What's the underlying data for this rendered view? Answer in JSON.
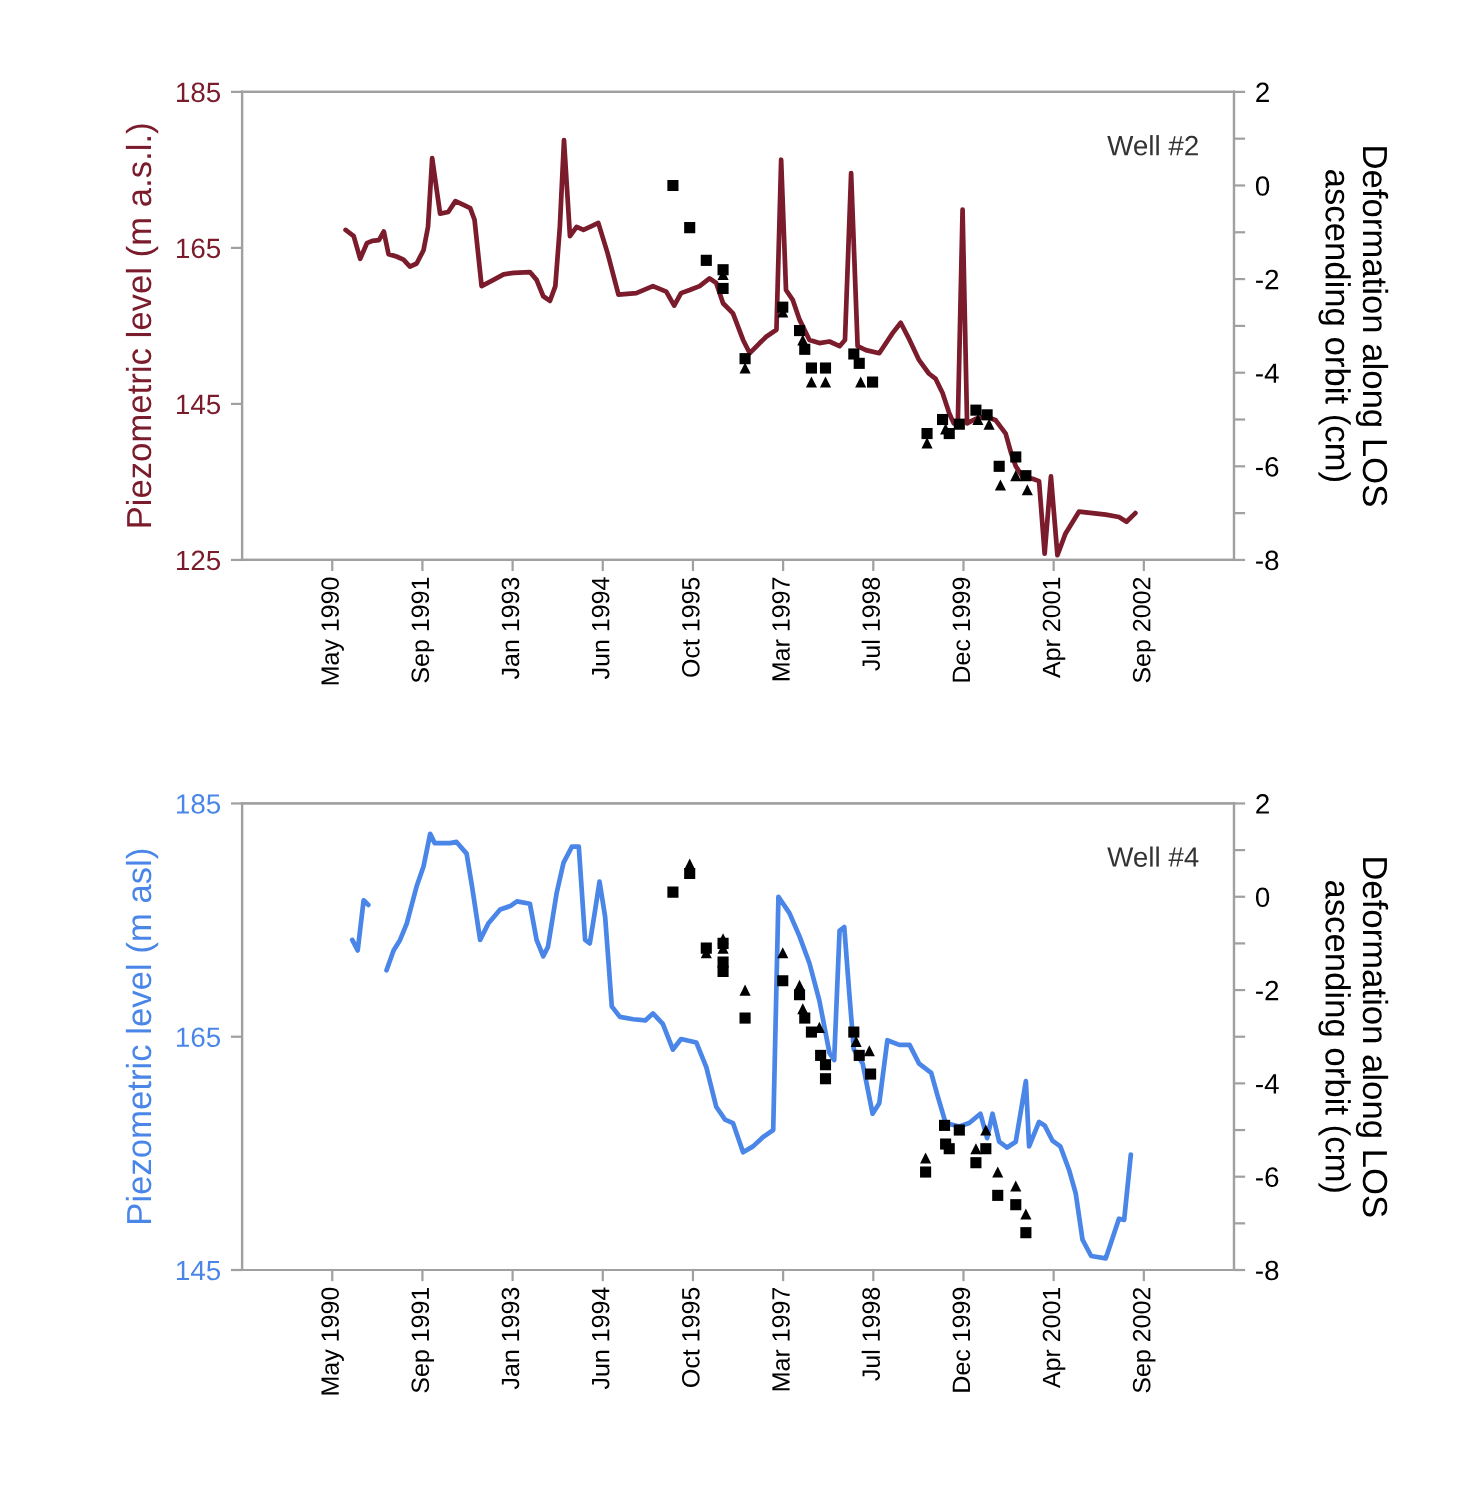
{
  "chart_data": [
    {
      "type": "line",
      "ylabel": "Piezometric level (m a.s.l.)",
      "y2label": "Deformation along LOS\nascending orbit (cm)",
      "annotations": [
        "Well #2"
      ],
      "xlim": [
        "1988-12-23",
        "2004-01-14"
      ],
      "xticks": [
        {
          "value": "1990-05-07",
          "label": "May 1990"
        },
        {
          "value": "1991-09-19",
          "label": "Sep 1991"
        },
        {
          "value": "1993-01-31",
          "label": "Jan 1993"
        },
        {
          "value": "1994-06-15",
          "label": "Jun 1994"
        },
        {
          "value": "1995-10-28",
          "label": "Oct 1995"
        },
        {
          "value": "1997-03-11",
          "label": "Mar 1997"
        },
        {
          "value": "1998-07-24",
          "label": "Jul 1998"
        },
        {
          "value": "1999-12-06",
          "label": "Dec 1999"
        },
        {
          "value": "2001-04-19",
          "label": "Apr 2001"
        },
        {
          "value": "2002-09-01",
          "label": "Sep 2002"
        }
      ],
      "ylim": [
        125,
        185
      ],
      "yticks": [
        125,
        145,
        165,
        185
      ],
      "y2lim": [
        -8,
        2
      ],
      "y2ticks": [
        -8,
        {
          "value": -7,
          "label": null
        },
        -6,
        {
          "value": -5,
          "label": null
        },
        -4,
        {
          "value": -3,
          "label": null
        },
        -2,
        {
          "value": -1,
          "label": null
        },
        0,
        {
          "value": 1,
          "label": null
        },
        2
      ],
      "series": [
        {
          "color": "#7b1c2c",
          "x": [
            "1990-07-20",
            "1990-09-03",
            "1990-10-09",
            "1990-11-15",
            "1990-12-15",
            "1991-01-21",
            "1991-02-17",
            "1991-03-15",
            "1991-04-28",
            "1991-06-06",
            "1991-07-12",
            "1991-08-18",
            "1991-09-25",
            "1991-10-20",
            "1991-11-12",
            "1991-12-26",
            "1992-02-09",
            "1992-03-20",
            "1992-05-04",
            "1992-06-10",
            "1992-07-04",
            "1992-08-12",
            "1992-10-17",
            "1992-12-12",
            "1993-02-06",
            "1993-05-07",
            "1993-06-13",
            "1993-07-20",
            "1993-08-26",
            "1993-09-25",
            "1993-10-20",
            "1993-11-12",
            "1993-12-15",
            "1994-01-21",
            "1994-02-28",
            "1994-04-23",
            "1994-05-21",
            "1994-07-12",
            "1994-09-10",
            "1994-12-18",
            "1995-03-20",
            "1995-06-02",
            "1995-07-16",
            "1995-08-23",
            "1995-10-10",
            "1995-12-04",
            "1996-01-28",
            "1996-03-05",
            "1996-04-12",
            "1996-06-06",
            "1996-08-01",
            "1996-09-07",
            "1996-11-01",
            "1996-12-07",
            "1997-02-02",
            "1997-02-28",
            "1997-03-27",
            "1997-05-04",
            "1997-06-10",
            "1997-08-04",
            "1997-09-28",
            "1997-11-23",
            "1998-01-18",
            "1998-02-17",
            "1998-03-23",
            "1998-04-28",
            "1998-06-13",
            "1998-08-26",
            "1998-11-09",
            "1998-12-23",
            "1999-02-10",
            "1999-04-04",
            "1999-05-28",
            "1999-07-05",
            "1999-08-12",
            "1999-09-18",
            "1999-10-13",
            "1999-11-05",
            "1999-12-01",
            "1999-12-26",
            "2000-02-13",
            "2000-04-08",
            "2000-06-02",
            "2000-07-27",
            "2000-08-26",
            "2000-09-21",
            "2000-10-28",
            "2000-12-23",
            "2001-01-28",
            "2001-02-28",
            "2001-04-04",
            "2001-05-10",
            "2001-06-24",
            "2001-09-07",
            "2001-11-20",
            "2002-02-02",
            "2002-04-16",
            "2002-05-28",
            "2002-07-16"
          ],
          "values": [
            167.3,
            166.5,
            163.6,
            165.6,
            165.9,
            166.0,
            167.1,
            164.2,
            163.9,
            163.5,
            162.6,
            163.0,
            164.7,
            167.7,
            176.5,
            169.4,
            169.6,
            171.0,
            170.5,
            170.1,
            168.6,
            160.1,
            160.9,
            161.6,
            161.8,
            161.9,
            160.9,
            158.8,
            158.2,
            160.1,
            167.7,
            178.8,
            166.5,
            167.7,
            167.3,
            167.9,
            168.2,
            164.3,
            159.0,
            159.2,
            160.1,
            159.4,
            157.6,
            159.2,
            159.6,
            160.1,
            161.1,
            160.5,
            157.9,
            156.6,
            153.2,
            151.5,
            152.8,
            153.6,
            154.5,
            176.3,
            159.6,
            158.3,
            155.8,
            153.2,
            152.8,
            153.0,
            152.4,
            153.2,
            174.6,
            152.4,
            151.9,
            151.5,
            154.1,
            155.4,
            153.2,
            150.6,
            148.9,
            148.2,
            146.4,
            143.8,
            142.5,
            142.9,
            169.9,
            142.5,
            143.1,
            143.4,
            142.9,
            141.2,
            138.7,
            137.0,
            135.7,
            135.4,
            135.1,
            125.8,
            135.7,
            125.6,
            128.4,
            131.2,
            131.0,
            130.8,
            130.5,
            129.9,
            131.0
          ]
        },
        {
          "type": "scatter",
          "axis": "y2",
          "marker": "square",
          "color": "#000000",
          "x": [
            "1995-07-09",
            "1995-10-10",
            "1996-01-10",
            "1996-04-12",
            "1996-04-12",
            "1996-08-12",
            "1997-03-09",
            "1997-06-10",
            "1997-07-09",
            "1997-08-15",
            "1997-11-01",
            "1998-04-07",
            "1998-05-07",
            "1998-07-20",
            "1999-05-18",
            "1999-08-12",
            "1999-09-18",
            "1999-11-13",
            "2000-02-13",
            "2000-04-15",
            "2000-06-21",
            "2000-09-21",
            "2000-11-16"
          ],
          "values": [
            0.0,
            -0.9,
            -1.6,
            -1.8,
            -2.2,
            -3.7,
            -2.6,
            -3.1,
            -3.5,
            -3.9,
            -3.9,
            -3.6,
            -3.8,
            -4.2,
            -5.3,
            -5.0,
            -5.3,
            -5.1,
            -4.8,
            -4.9,
            -6.0,
            -5.8,
            -6.2
          ]
        },
        {
          "type": "scatter",
          "axis": "y2",
          "marker": "triangle",
          "color": "#000000",
          "x": [
            "1996-04-12",
            "1996-08-12",
            "1997-03-09",
            "1997-06-28",
            "1997-08-15",
            "1997-11-01",
            "1998-05-15",
            "1999-05-18",
            "1999-08-29",
            "2000-02-24",
            "2000-04-26",
            "2000-06-28",
            "2000-09-21",
            "2000-11-24"
          ],
          "values": [
            -1.9,
            -3.9,
            -2.7,
            -3.3,
            -4.2,
            -4.2,
            -4.2,
            -5.5,
            -5.2,
            -5.0,
            -5.1,
            -6.4,
            -6.2,
            -6.5
          ]
        }
      ]
    },
    {
      "type": "line",
      "ylabel": "Piezometric level (m asl)",
      "y2label": "Deformation along LOS\nascending orbit (cm)",
      "annotations": [
        "Well #4"
      ],
      "xlim": [
        "1988-12-23",
        "2004-01-14"
      ],
      "xticks": [
        {
          "value": "1990-05-07",
          "label": "May 1990"
        },
        {
          "value": "1991-09-19",
          "label": "Sep 1991"
        },
        {
          "value": "1993-01-31",
          "label": "Jan 1993"
        },
        {
          "value": "1994-06-15",
          "label": "Jun 1994"
        },
        {
          "value": "1995-10-28",
          "label": "Oct 1995"
        },
        {
          "value": "1997-03-11",
          "label": "Mar 1997"
        },
        {
          "value": "1998-07-24",
          "label": "Jul 1998"
        },
        {
          "value": "1999-12-06",
          "label": "Dec 1999"
        },
        {
          "value": "2001-04-19",
          "label": "Apr 2001"
        },
        {
          "value": "2002-09-01",
          "label": "Sep 2002"
        }
      ],
      "ylim": [
        145,
        185
      ],
      "yticks": [
        145,
        165,
        185
      ],
      "y2lim": [
        -8,
        2
      ],
      "y2ticks": [
        -8,
        {
          "value": -7,
          "label": null
        },
        -6,
        {
          "value": -5,
          "label": null
        },
        -4,
        {
          "value": -3,
          "label": null
        },
        -2,
        {
          "value": -1,
          "label": null
        },
        0,
        {
          "value": 1,
          "label": null
        },
        2
      ],
      "series": [
        {
          "color": "#4a86e8",
          "x": [
            "1990-08-26",
            "1990-09-25",
            "1990-10-28",
            "1990-11-23",
            "1991-01-10",
            "1991-03-04",
            "1991-04-12",
            "1991-05-18",
            "1991-06-24",
            "1991-08-18",
            "1991-09-25",
            "1991-11-01",
            "1991-11-26",
            "1992-02-20",
            "1992-03-26",
            "1992-05-21",
            "1992-06-20",
            "1992-08-04",
            "1992-09-18",
            "1992-11-23",
            "1993-01-18",
            "1993-02-24",
            "1993-05-07",
            "1993-06-13",
            "1993-07-20",
            "1993-08-15",
            "1993-10-02",
            "1993-11-09",
            "1993-12-26",
            "1994-02-02",
            "1994-03-09",
            "1994-04-04",
            "1994-04-28",
            "1994-05-28",
            "1994-06-28",
            "1994-08-04",
            "1994-09-18",
            "1994-12-01",
            "1995-02-06",
            "1995-03-20",
            "1995-05-14",
            "1995-07-09",
            "1995-08-23",
            "1995-11-16",
            "1996-01-10",
            "1996-03-05",
            "1996-04-23",
            "1996-06-06",
            "1996-08-01",
            "1996-09-25",
            "1996-11-20",
            "1997-01-15",
            "1997-02-13",
            "1997-04-15",
            "1997-06-10",
            "1997-08-04",
            "1997-09-28",
            "1997-11-23",
            "1997-12-19",
            "1998-01-18",
            "1998-02-13",
            "1998-03-13",
            "1998-04-07",
            "1998-05-26",
            "1998-07-20",
            "1998-08-26",
            "1998-10-10",
            "1998-12-15",
            "1999-02-10",
            "1999-04-04",
            "1999-06-10",
            "1999-07-16",
            "1999-08-29",
            "1999-11-13",
            "2000-01-07",
            "2000-03-09",
            "2000-04-15",
            "2000-05-15",
            "2000-06-21",
            "2000-08-04",
            "2000-09-21",
            "2000-11-16",
            "2000-12-04",
            "2001-01-28",
            "2001-02-28",
            "2001-04-12",
            "2001-05-26",
            "2001-07-13",
            "2001-08-19",
            "2001-09-26",
            "2001-11-13",
            "2002-02-02",
            "2002-03-02",
            "2002-04-16",
            "2002-05-15",
            "2002-06-21"
          ],
          "values": [
            173.3,
            172.4,
            176.7,
            176.3,
            null,
            170.7,
            172.4,
            173.3,
            174.7,
            177.9,
            179.6,
            182.4,
            181.6,
            181.6,
            181.7,
            180.7,
            177.9,
            173.3,
            174.7,
            175.9,
            176.2,
            176.6,
            176.4,
            173.3,
            171.9,
            172.7,
            177.3,
            179.9,
            181.3,
            181.3,
            173.3,
            173.0,
            175.3,
            178.3,
            175.3,
            167.6,
            166.7,
            166.5,
            166.4,
            167.0,
            166.1,
            163.9,
            164.8,
            164.5,
            162.4,
            159.0,
            157.9,
            157.6,
            155.1,
            155.6,
            156.4,
            157.0,
            177.0,
            175.6,
            173.6,
            171.3,
            168.1,
            163.6,
            163.0,
            174.1,
            174.4,
            168.7,
            163.9,
            162.7,
            158.4,
            159.3,
            164.7,
            164.3,
            164.3,
            162.7,
            161.9,
            159.9,
            157.6,
            157.3,
            157.6,
            158.4,
            156.3,
            158.4,
            156.0,
            155.5,
            156.0,
            161.2,
            155.6,
            157.7,
            157.4,
            156.1,
            155.6,
            153.6,
            151.6,
            147.6,
            146.2,
            146.0,
            147.3,
            149.4,
            149.3,
            154.9
          ]
        },
        {
          "type": "scatter",
          "axis": "y2",
          "marker": "square",
          "color": "#000000",
          "x": [
            "1995-07-09",
            "1995-10-10",
            "1996-01-10",
            "1996-04-12",
            "1996-04-12",
            "1996-04-12",
            "1996-08-12",
            "1997-03-09",
            "1997-06-10",
            "1997-07-09",
            "1997-08-15",
            "1997-10-05",
            "1997-11-01",
            "1997-11-01",
            "1998-04-07",
            "1998-05-07",
            "1998-07-09",
            "1999-05-10",
            "1999-08-23",
            "1999-08-29",
            "1999-09-18",
            "1999-11-13",
            "2000-02-13",
            "2000-04-08",
            "2000-06-13",
            "2000-09-21",
            "2000-11-16"
          ],
          "values": [
            0.1,
            0.5,
            -1.1,
            -1.0,
            -1.4,
            -1.6,
            -2.6,
            -1.8,
            -2.1,
            -2.6,
            -2.9,
            -3.4,
            -3.6,
            -3.9,
            -2.9,
            -3.4,
            -3.8,
            -5.9,
            -4.9,
            -5.3,
            -5.4,
            -5.0,
            -5.7,
            -5.4,
            -6.4,
            -6.6,
            -7.2
          ]
        },
        {
          "type": "scatter",
          "axis": "y2",
          "marker": "triangle",
          "color": "#000000",
          "x": [
            "1995-10-10",
            "1996-01-10",
            "1996-04-12",
            "1996-04-12",
            "1996-08-12",
            "1997-03-09",
            "1997-06-10",
            "1997-06-28",
            "1997-09-28",
            "1998-04-20",
            "1998-07-02",
            "1999-05-10",
            "2000-02-13",
            "2000-04-08",
            "2000-06-13",
            "2000-09-21",
            "2000-11-16"
          ],
          "values": [
            0.7,
            -1.2,
            -0.9,
            -1.1,
            -2.0,
            -1.2,
            -1.9,
            -2.4,
            -2.8,
            -3.1,
            -3.3,
            -5.6,
            -5.4,
            -5.0,
            -5.9,
            -6.2,
            -6.8
          ]
        }
      ]
    }
  ]
}
